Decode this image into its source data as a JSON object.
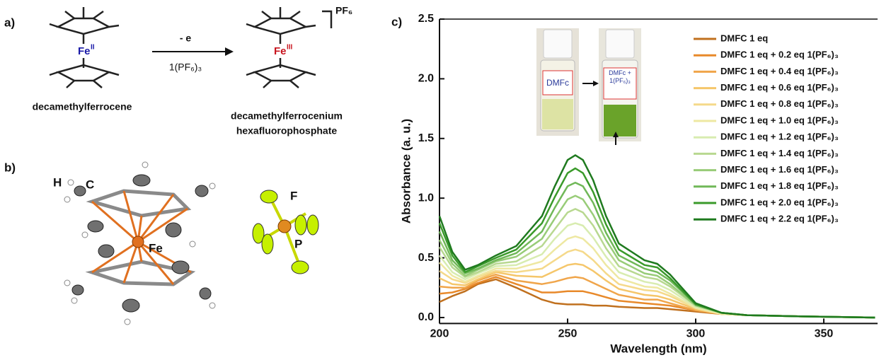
{
  "scheme": {
    "panel_a": "a)",
    "reactant": "decamethylferrocene",
    "product_line1": "decamethylferrocenium",
    "product_line2": "hexafluorophosphate",
    "fe_left": "Fe",
    "fe_left_ox": "II",
    "fe_right": "Fe",
    "fe_right_ox": "III",
    "counter_ion": "PF₆",
    "arrow_top": "- e",
    "arrow_bottom": "1(PF₆)₃"
  },
  "structure": {
    "panel_b": "b)",
    "atoms": [
      "H",
      "C",
      "Fe",
      "F",
      "P"
    ]
  },
  "chart_data": {
    "type": "line",
    "panel": "c)",
    "xlabel": "Wavelength (nm)",
    "ylabel": "Absorbance (a. u.)",
    "inset_labels": [
      "DMFc",
      "DMFc + 1(PF₆)₃"
    ],
    "x": [
      200,
      205,
      210,
      215,
      222,
      230,
      240,
      245,
      250,
      253,
      256,
      260,
      265,
      270,
      280,
      285,
      290,
      300,
      310,
      320,
      340,
      370
    ],
    "xlim": [
      200,
      371
    ],
    "xticks": [
      200,
      250,
      300,
      350
    ],
    "ylim": [
      -0.05,
      2.5
    ],
    "yticks": [
      {
        "value": 0,
        "label": "0.0"
      },
      0.5,
      {
        "value": 1,
        "label": "1.0"
      },
      1.5,
      {
        "value": 2,
        "label": "2.0"
      },
      2.5
    ],
    "series": [
      {
        "name": "DMFC 1 eq",
        "color": "#c0701e",
        "values": [
          0.13,
          0.18,
          0.22,
          0.28,
          0.32,
          0.25,
          0.15,
          0.12,
          0.11,
          0.11,
          0.11,
          0.1,
          0.1,
          0.09,
          0.08,
          0.08,
          0.07,
          0.05,
          0.03,
          0.02,
          0.01,
          0
        ]
      },
      {
        "name": "DMFC 1 eq + 0.2 eq 1(PF₆)₃",
        "color": "#e8892a",
        "values": [
          0.2,
          0.21,
          0.24,
          0.29,
          0.34,
          0.28,
          0.21,
          0.21,
          0.22,
          0.22,
          0.22,
          0.2,
          0.17,
          0.14,
          0.12,
          0.11,
          0.1,
          0.06,
          0.03,
          0.02,
          0.01,
          0
        ]
      },
      {
        "name": "DMFC 1 eq + 0.4 eq 1(PF₆)₃",
        "color": "#f0a54a",
        "values": [
          0.26,
          0.25,
          0.25,
          0.31,
          0.36,
          0.31,
          0.28,
          0.3,
          0.33,
          0.34,
          0.33,
          0.29,
          0.24,
          0.19,
          0.15,
          0.15,
          0.12,
          0.06,
          0.03,
          0.02,
          0.01,
          0
        ]
      },
      {
        "name": "DMFC 1 eq + 0.6 eq 1(PF₆)₃",
        "color": "#f5c66a",
        "values": [
          0.33,
          0.28,
          0.27,
          0.32,
          0.38,
          0.35,
          0.34,
          0.39,
          0.44,
          0.45,
          0.44,
          0.39,
          0.31,
          0.24,
          0.19,
          0.18,
          0.15,
          0.07,
          0.03,
          0.02,
          0.01,
          0
        ]
      },
      {
        "name": "DMFC 1 eq + 0.8 eq 1(PF₆)₃",
        "color": "#f5d98a",
        "values": [
          0.39,
          0.32,
          0.29,
          0.34,
          0.39,
          0.38,
          0.41,
          0.48,
          0.55,
          0.57,
          0.55,
          0.48,
          0.37,
          0.28,
          0.23,
          0.22,
          0.18,
          0.08,
          0.03,
          0.02,
          0.01,
          0
        ]
      },
      {
        "name": "DMFC 1 eq + 1.0 eq 1(PF₆)₃",
        "color": "#eee8a2",
        "values": [
          0.46,
          0.35,
          0.3,
          0.35,
          0.41,
          0.41,
          0.47,
          0.57,
          0.66,
          0.68,
          0.66,
          0.58,
          0.44,
          0.33,
          0.26,
          0.25,
          0.2,
          0.08,
          0.03,
          0.02,
          0.01,
          0
        ]
      },
      {
        "name": "DMFC 1 eq + 1.2 eq 1(PF₆)₃",
        "color": "#d8ecb0",
        "values": [
          0.52,
          0.38,
          0.32,
          0.37,
          0.43,
          0.44,
          0.53,
          0.66,
          0.77,
          0.79,
          0.77,
          0.67,
          0.51,
          0.38,
          0.3,
          0.28,
          0.23,
          0.09,
          0.04,
          0.02,
          0.01,
          0
        ]
      },
      {
        "name": "DMFC 1 eq + 1.4 eq 1(PF₆)₃",
        "color": "#b8d890",
        "values": [
          0.59,
          0.42,
          0.34,
          0.38,
          0.45,
          0.47,
          0.6,
          0.74,
          0.88,
          0.91,
          0.88,
          0.77,
          0.58,
          0.43,
          0.34,
          0.32,
          0.26,
          0.1,
          0.04,
          0.02,
          0.01,
          0
        ]
      },
      {
        "name": "DMFC 1 eq + 1.6 eq 1(PF₆)₃",
        "color": "#98cc78",
        "values": [
          0.65,
          0.45,
          0.35,
          0.4,
          0.47,
          0.51,
          0.66,
          0.83,
          0.99,
          1.02,
          0.99,
          0.86,
          0.65,
          0.48,
          0.37,
          0.35,
          0.28,
          0.1,
          0.04,
          0.02,
          0.01,
          0
        ]
      },
      {
        "name": "DMFC 1 eq + 1.8 eq 1(PF₆)₃",
        "color": "#70b858",
        "values": [
          0.72,
          0.48,
          0.37,
          0.41,
          0.48,
          0.54,
          0.72,
          0.92,
          1.1,
          1.13,
          1.1,
          0.96,
          0.71,
          0.52,
          0.41,
          0.38,
          0.31,
          0.11,
          0.04,
          0.02,
          0.01,
          0
        ]
      },
      {
        "name": "DMFC 1 eq + 2.0 eq 1(PF₆)₃",
        "color": "#3a9a2a",
        "values": [
          0.79,
          0.52,
          0.38,
          0.43,
          0.5,
          0.57,
          0.79,
          1.01,
          1.21,
          1.25,
          1.21,
          1.05,
          0.78,
          0.57,
          0.44,
          0.42,
          0.33,
          0.11,
          0.04,
          0.02,
          0.01,
          0
        ]
      },
      {
        "name": "DMFC 1 eq + 2.2 eq 1(PF₆)₃",
        "color": "#1f7a1f",
        "values": [
          0.85,
          0.55,
          0.4,
          0.44,
          0.52,
          0.6,
          0.85,
          1.1,
          1.32,
          1.36,
          1.32,
          1.15,
          0.85,
          0.62,
          0.48,
          0.45,
          0.36,
          0.12,
          0.04,
          0.02,
          0.01,
          0
        ]
      }
    ]
  }
}
